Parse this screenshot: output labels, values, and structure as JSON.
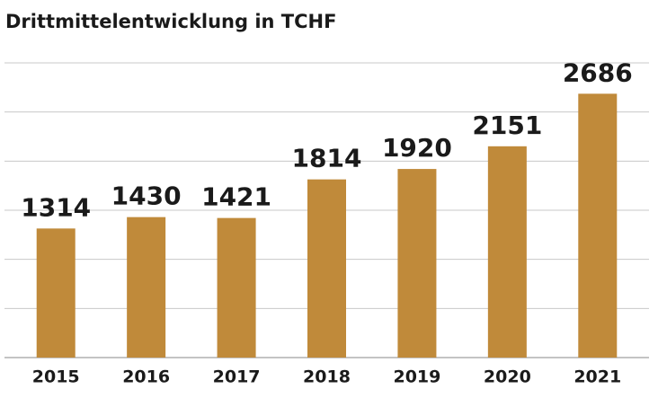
{
  "chart_data": {
    "type": "bar",
    "title": "Drittmittelentwicklung in TCHF",
    "categories": [
      "2015",
      "2016",
      "2017",
      "2018",
      "2019",
      "2020",
      "2021"
    ],
    "values": [
      1314,
      1430,
      1421,
      1814,
      1920,
      2151,
      2686
    ],
    "color": "#c08a3a",
    "ylim": [
      0,
      3000
    ],
    "yticks": [
      0,
      500,
      1000,
      1500,
      2000,
      2500,
      3000
    ],
    "grid": true
  }
}
